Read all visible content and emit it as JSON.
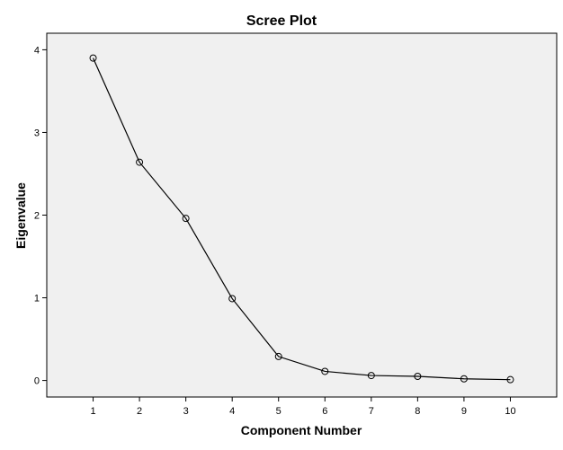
{
  "chart_data": {
    "type": "line",
    "title": "Scree Plot",
    "xlabel": "Component Number",
    "ylabel": "Eigenvalue",
    "x": [
      1,
      2,
      3,
      4,
      5,
      6,
      7,
      8,
      9,
      10
    ],
    "series": [
      {
        "values": [
          3.9,
          2.64,
          1.96,
          0.99,
          0.29,
          0.11,
          0.06,
          0.05,
          0.02,
          0.01
        ]
      }
    ],
    "xlim": [
      0,
      11
    ],
    "ylim": [
      -0.2,
      4.2
    ],
    "xticks": [
      1,
      2,
      3,
      4,
      5,
      6,
      7,
      8,
      9,
      10
    ],
    "yticks": [
      0,
      1,
      2,
      3,
      4
    ],
    "marker": "open-circle",
    "grid": false,
    "legend": "none",
    "colors": {
      "plot_background": "#f0f0f0",
      "line": "#000000",
      "frame": "#000000"
    }
  }
}
